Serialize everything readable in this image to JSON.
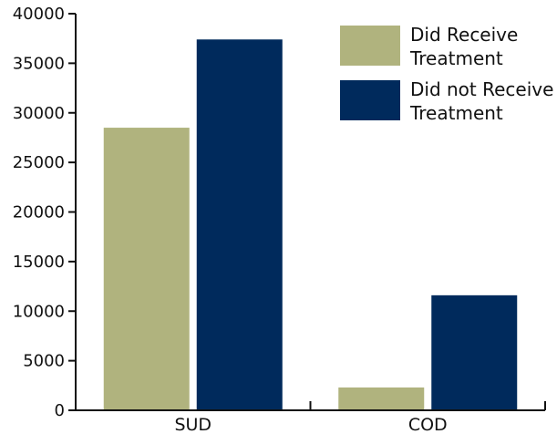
{
  "chart_data": {
    "type": "bar",
    "categories": [
      "SUD",
      "COD"
    ],
    "series": [
      {
        "name": "Did Receive Treatment",
        "values": [
          28500,
          2300
        ],
        "color": "#b0b37e"
      },
      {
        "name": "Did not Receive Treatment",
        "values": [
          37400,
          11600
        ],
        "color": "#002a5c"
      }
    ],
    "yticks": [
      0,
      5000,
      10000,
      15000,
      20000,
      25000,
      30000,
      35000,
      40000
    ],
    "ylim": [
      0,
      40000
    ],
    "title": "",
    "xlabel": "",
    "ylabel": "",
    "grid": false,
    "legend_position": "top-right",
    "legend_labels": [
      [
        "Did Receive",
        "Treatment"
      ],
      [
        "Did not Receive",
        "Treatment"
      ]
    ]
  }
}
